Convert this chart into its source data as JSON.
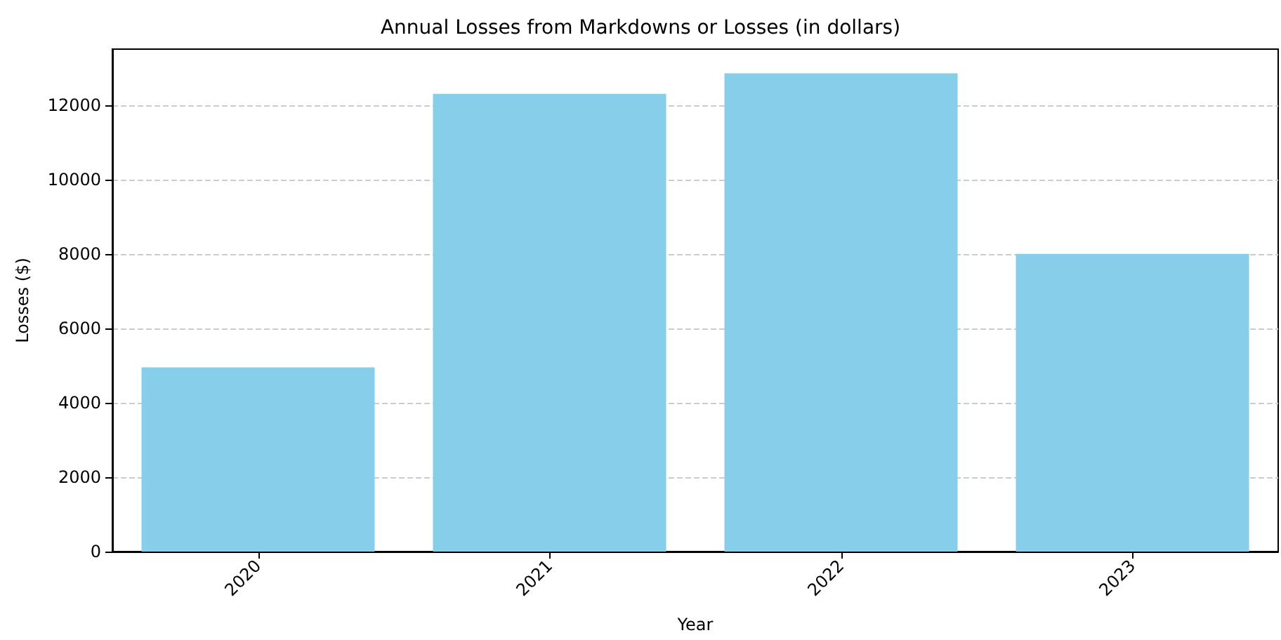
{
  "chart_data": {
    "type": "bar",
    "title": "Annual Losses from Markdowns or Losses (in dollars)",
    "xlabel": "Year",
    "ylabel": "Losses ($)",
    "categories": [
      "2020",
      "2021",
      "2022",
      "2023"
    ],
    "values": [
      4950,
      12300,
      12850,
      8000
    ],
    "color": "#87ceeb",
    "ylim": [
      0,
      13500
    ],
    "yticks": [
      0,
      2000,
      4000,
      6000,
      8000,
      10000,
      12000
    ],
    "grid": "y"
  }
}
